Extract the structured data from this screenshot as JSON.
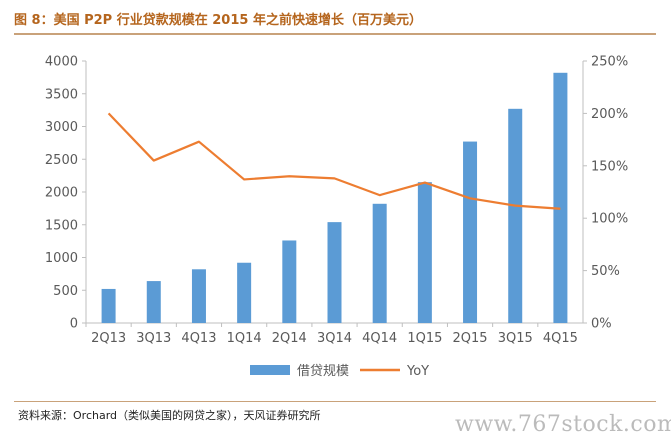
{
  "title": "图 8：美国 P2P 行业贷款规模在 2015 年之前快速增长（百万美元）",
  "source": "资料来源：Orchard（类似美国的网贷之家），天风证券研究所",
  "watermark": "www.767stock.com",
  "colors": {
    "bar": "#5b9bd5",
    "line": "#ed7d31",
    "title": "#b5651d",
    "axis": "#595959"
  },
  "chart_data": {
    "type": "bar",
    "categories": [
      "2Q13",
      "3Q13",
      "4Q13",
      "1Q14",
      "2Q14",
      "3Q14",
      "4Q14",
      "1Q15",
      "2Q15",
      "3Q15",
      "4Q15"
    ],
    "series": [
      {
        "name": "借贷规模",
        "type": "bar",
        "axis": "left",
        "values": [
          520,
          640,
          820,
          920,
          1260,
          1540,
          1820,
          2150,
          2770,
          3270,
          3820
        ]
      },
      {
        "name": "YoY",
        "type": "line",
        "axis": "right",
        "values": [
          200,
          155,
          173,
          137,
          140,
          138,
          122,
          134,
          119,
          112,
          109
        ]
      }
    ],
    "y_left": {
      "min": 0,
      "max": 4000,
      "ticks": [
        "0",
        "500",
        "1000",
        "1500",
        "2000",
        "2500",
        "3000",
        "3500",
        "4000"
      ]
    },
    "y_right": {
      "min": 0,
      "max": 250,
      "ticks": [
        "0%",
        "50%",
        "100%",
        "150%",
        "200%",
        "250%"
      ]
    },
    "legend": "bottom",
    "grid": false
  }
}
